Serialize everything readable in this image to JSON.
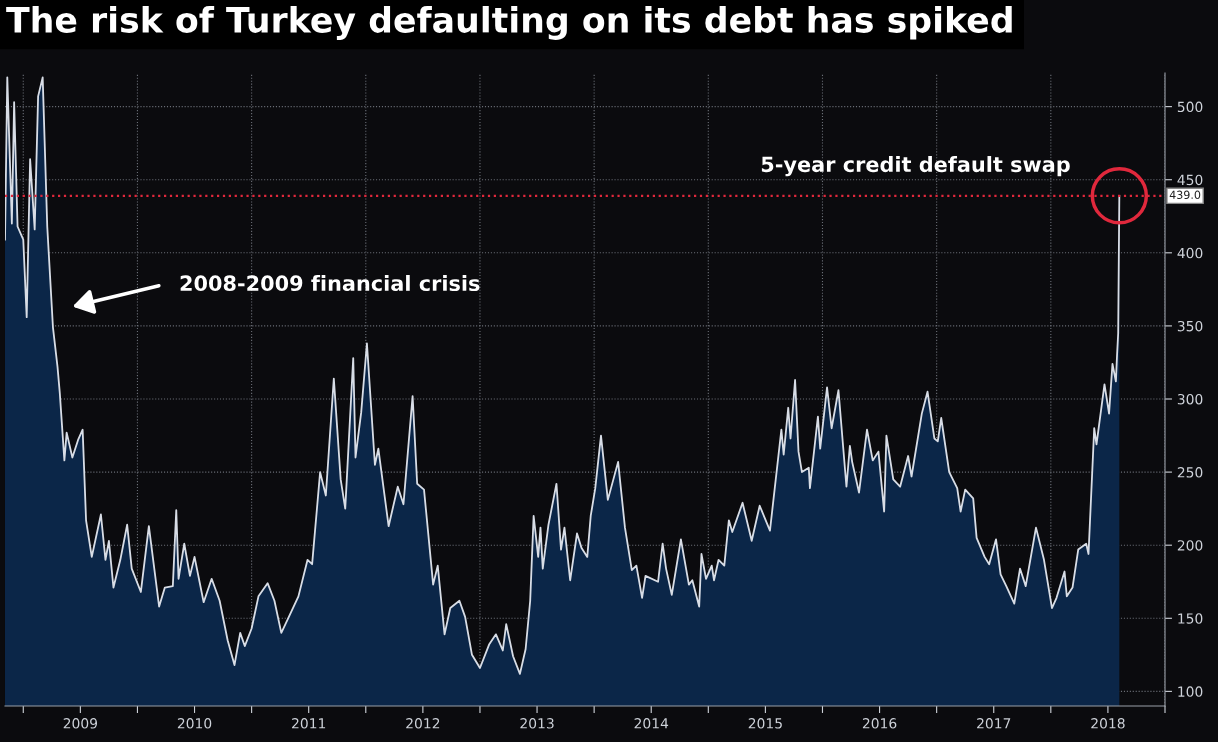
{
  "chart_data": {
    "type": "area",
    "title": "The risk of Turkey defaulting on its debt has spiked",
    "x": [
      2008.84,
      2008.86,
      2008.9,
      2008.92,
      2008.95,
      2009.0,
      2009.03,
      2009.06,
      2009.1,
      2009.13,
      2009.17,
      2009.21,
      2009.26,
      2009.3,
      2009.32,
      2009.36,
      2009.38,
      2009.43,
      2009.48,
      2009.52,
      2009.55,
      2009.6,
      2009.68,
      2009.72,
      2009.75,
      2009.79,
      2009.85,
      2009.91,
      2009.95,
      2010.03,
      2010.1,
      2010.19,
      2010.24,
      2010.31,
      2010.34,
      2010.36,
      2010.41,
      2010.46,
      2010.5,
      2010.58,
      2010.65,
      2010.72,
      2010.79,
      2010.85,
      2010.9,
      2010.94,
      2011.0,
      2011.06,
      2011.14,
      2011.2,
      2011.26,
      2011.32,
      2011.41,
      2011.49,
      2011.53,
      2011.6,
      2011.65,
      2011.72,
      2011.78,
      2011.82,
      2011.89,
      2011.91,
      2011.96,
      2012.01,
      2012.08,
      2012.11,
      2012.2,
      2012.28,
      2012.33,
      2012.41,
      2012.45,
      2012.51,
      2012.59,
      2012.63,
      2012.69,
      2012.74,
      2012.82,
      2012.87,
      2012.93,
      2013.0,
      2013.08,
      2013.14,
      2013.2,
      2013.23,
      2013.29,
      2013.35,
      2013.4,
      2013.44,
      2013.47,
      2013.51,
      2013.53,
      2013.55,
      2013.6,
      2013.67,
      2013.71,
      2013.74,
      2013.79,
      2013.85,
      2013.89,
      2013.94,
      2013.97,
      2014.01,
      2014.06,
      2014.12,
      2014.21,
      2014.27,
      2014.33,
      2014.37,
      2014.42,
      2014.45,
      2014.56,
      2014.6,
      2014.63,
      2014.68,
      2014.76,
      2014.83,
      2014.86,
      2014.92,
      2014.94,
      2014.98,
      2015.03,
      2015.05,
      2015.09,
      2015.14,
      2015.18,
      2015.21,
      2015.3,
      2015.38,
      2015.45,
      2015.54,
      2015.64,
      2015.66,
      2015.7,
      2015.72,
      2015.76,
      2015.79,
      2015.82,
      2015.88,
      2015.89,
      2015.96,
      2015.98,
      2016.04,
      2016.08,
      2016.14,
      2016.21,
      2016.24,
      2016.26,
      2016.32,
      2016.39,
      2016.44,
      2016.49,
      2016.54,
      2016.56,
      2016.62,
      2016.68,
      2016.75,
      2016.78,
      2016.87,
      2016.92,
      2016.98,
      2017.01,
      2017.04,
      2017.11,
      2017.18,
      2017.21,
      2017.25,
      2017.32,
      2017.35,
      2017.42,
      2017.46,
      2017.52,
      2017.56,
      2017.61,
      2017.68,
      2017.73,
      2017.78,
      2017.87,
      2017.94,
      2018.01,
      2018.05,
      2018.12,
      2018.14,
      2018.19,
      2018.24,
      2018.31,
      2018.33,
      2018.38,
      2018.4,
      2018.47,
      2018.51,
      2018.54,
      2018.57,
      2018.58,
      2018.59,
      2018.6
    ],
    "series": [
      {
        "color": "#d8dde6",
        "values": [
          409,
          520,
          420,
          503,
          418,
          409,
          356,
          464,
          416,
          507,
          520,
          418,
          349,
          322,
          304,
          258,
          277,
          260,
          272,
          279,
          217,
          192,
          221,
          190,
          203,
          171,
          190,
          214,
          184,
          168,
          213,
          158,
          171,
          172,
          224,
          177,
          201,
          179,
          192,
          161,
          177,
          162,
          135,
          118,
          140,
          131,
          143,
          165,
          174,
          162,
          140,
          150,
          165,
          190,
          187,
          250,
          234,
          314,
          245,
          225,
          328,
          260,
          291,
          338,
          255,
          266,
          213,
          240,
          228,
          302,
          242,
          238,
          173,
          186,
          139,
          157,
          162,
          151,
          125,
          116,
          132,
          139,
          128,
          146,
          124,
          112,
          129,
          162,
          220,
          192,
          212,
          184,
          214,
          242,
          197,
          212,
          176,
          208,
          198,
          192,
          220,
          239,
          275,
          231,
          257,
          212,
          183,
          186,
          164,
          179,
          175,
          201,
          184,
          166,
          204,
          173,
          176,
          158,
          194,
          177,
          186,
          176,
          190,
          186,
          217,
          209,
          229,
          203,
          227,
          210,
          279,
          262,
          294,
          273,
          313,
          264,
          250,
          253,
          239,
          288,
          266,
          308,
          280,
          306,
          240,
          268,
          257,
          236,
          279,
          258,
          264,
          223,
          275,
          245,
          240,
          261,
          247,
          290,
          305,
          273,
          271,
          287,
          250,
          239,
          223,
          238,
          232,
          205,
          192,
          187,
          204,
          180,
          172,
          160,
          184,
          172,
          212,
          190,
          157,
          164,
          182,
          165,
          171,
          197,
          201,
          194,
          280,
          269,
          310,
          290,
          324,
          312,
          330,
          345,
          439
        ]
      }
    ],
    "xlim": [
      2008.84,
      2019.0
    ],
    "xticks": [
      {
        "value": 2009,
        "label": null
      },
      {
        "value": 2009.5,
        "label": "2009"
      },
      {
        "value": 2010,
        "label": null
      },
      {
        "value": 2010.5,
        "label": "2010"
      },
      {
        "value": 2011,
        "label": null
      },
      {
        "value": 2011.5,
        "label": "2011"
      },
      {
        "value": 2012,
        "label": null
      },
      {
        "value": 2012.5,
        "label": "2012"
      },
      {
        "value": 2013,
        "label": null
      },
      {
        "value": 2013.5,
        "label": "2013"
      },
      {
        "value": 2014,
        "label": null
      },
      {
        "value": 2014.5,
        "label": "2014"
      },
      {
        "value": 2015,
        "label": null
      },
      {
        "value": 2015.5,
        "label": "2015"
      },
      {
        "value": 2016,
        "label": null
      },
      {
        "value": 2016.5,
        "label": "2016"
      },
      {
        "value": 2017,
        "label": null
      },
      {
        "value": 2017.5,
        "label": "2017"
      },
      {
        "value": 2018,
        "label": null
      },
      {
        "value": 2018.5,
        "label": "2018"
      },
      {
        "value": 2019,
        "label": null
      }
    ],
    "ylim": [
      90,
      523
    ],
    "yticks": [
      100,
      150,
      200,
      250,
      300,
      350,
      400,
      450,
      500
    ],
    "grid": true,
    "ref_lines": [
      {
        "axis": "y",
        "value": 439,
        "label": "439.0",
        "color": "#e0283c",
        "line_style": "dotted"
      }
    ],
    "annotations": [
      "2008-2009 financial crisis",
      {
        "text": "5-year credit default swap",
        "x": 2018.6,
        "y": 439
      }
    ]
  }
}
